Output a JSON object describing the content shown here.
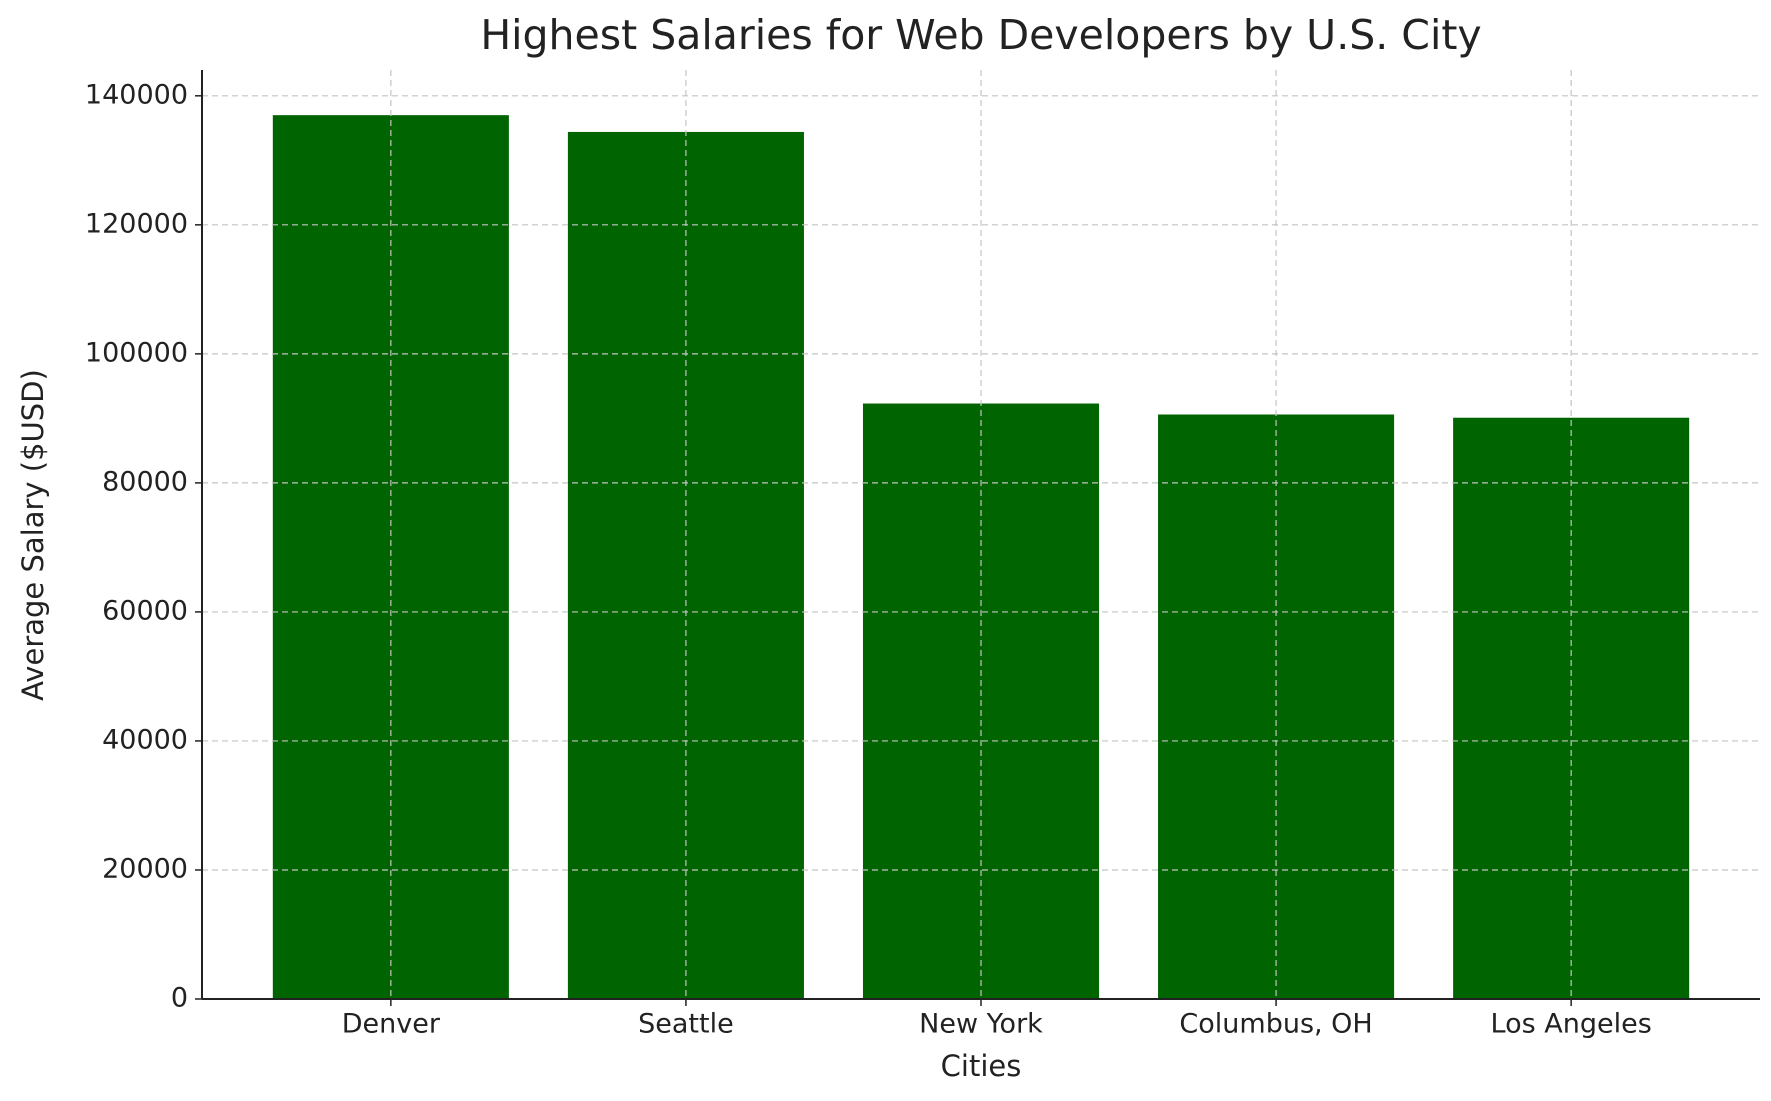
{
  "chart_data": {
    "type": "bar",
    "title": "Highest Salaries for Web Developers by U.S. City",
    "x_label": "Cities",
    "y_label": "Average Salary ($USD)",
    "categories": [
      "Denver",
      "Seattle",
      "New York",
      "Columbus, OH",
      "Los Angeles"
    ],
    "values": [
      137000,
      134400,
      92300,
      90600,
      90100
    ],
    "color": "#006400",
    "ylim": [
      0,
      144000
    ],
    "yticks": [
      0,
      20000,
      40000,
      60000,
      80000,
      100000,
      120000,
      140000
    ],
    "grid": true
  }
}
